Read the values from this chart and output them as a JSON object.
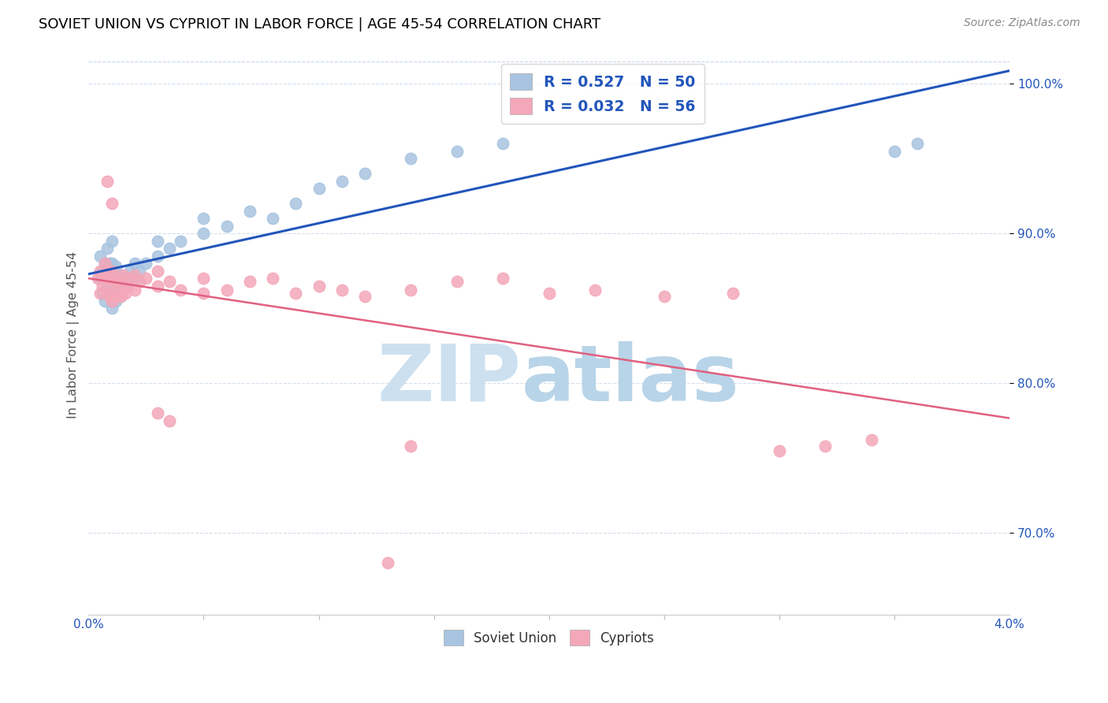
{
  "title": "SOVIET UNION VS CYPRIOT IN LABOR FORCE | AGE 45-54 CORRELATION CHART",
  "source": "Source: ZipAtlas.com",
  "ylabel": "In Labor Force | Age 45-54",
  "yticks": [
    0.7,
    0.8,
    0.9,
    1.0
  ],
  "ytick_labels": [
    "70.0%",
    "80.0%",
    "90.0%",
    "100.0%"
  ],
  "xmin": 0.0,
  "xmax": 0.04,
  "ymin": 0.645,
  "ymax": 1.02,
  "r_soviet": 0.527,
  "n_soviet": 50,
  "r_cypriot": 0.032,
  "n_cypriot": 56,
  "soviet_color": "#a8c4e0",
  "cypriot_color": "#f4a7b9",
  "trendline_soviet_color": "#2255bb",
  "trendline_cypriot_color": "#e06080",
  "legend_text_color": "#2255bb",
  "watermark_zip": "ZIP",
  "watermark_atlas": "atlas",
  "watermark_color": "#cce0f0",
  "background_color": "#ffffff",
  "soviet_x": [
    0.0005,
    0.0005,
    0.0006,
    0.0006,
    0.0007,
    0.0007,
    0.0008,
    0.0008,
    0.0008,
    0.0009,
    0.0009,
    0.0009,
    0.001,
    0.001,
    0.001,
    0.001,
    0.001,
    0.0012,
    0.0012,
    0.0012,
    0.0013,
    0.0013,
    0.0014,
    0.0014,
    0.0015,
    0.0016,
    0.0017,
    0.0018,
    0.002,
    0.002,
    0.0022,
    0.0025,
    0.003,
    0.003,
    0.0035,
    0.004,
    0.005,
    0.005,
    0.006,
    0.007,
    0.008,
    0.009,
    0.01,
    0.011,
    0.012,
    0.014,
    0.016,
    0.018,
    0.035,
    0.036
  ],
  "soviet_y": [
    0.87,
    0.885,
    0.86,
    0.875,
    0.855,
    0.88,
    0.865,
    0.875,
    0.89,
    0.86,
    0.87,
    0.88,
    0.85,
    0.86,
    0.87,
    0.88,
    0.895,
    0.855,
    0.865,
    0.878,
    0.862,
    0.872,
    0.858,
    0.868,
    0.87,
    0.865,
    0.87,
    0.875,
    0.87,
    0.88,
    0.875,
    0.88,
    0.885,
    0.895,
    0.89,
    0.895,
    0.9,
    0.91,
    0.905,
    0.915,
    0.91,
    0.92,
    0.93,
    0.935,
    0.94,
    0.95,
    0.955,
    0.96,
    0.955,
    0.96
  ],
  "cypriot_x": [
    0.0004,
    0.0005,
    0.0005,
    0.0006,
    0.0007,
    0.0007,
    0.0008,
    0.0008,
    0.0009,
    0.0009,
    0.001,
    0.001,
    0.001,
    0.0012,
    0.0012,
    0.0013,
    0.0013,
    0.0014,
    0.0015,
    0.0015,
    0.0016,
    0.0017,
    0.0018,
    0.002,
    0.002,
    0.0022,
    0.0025,
    0.003,
    0.003,
    0.0035,
    0.004,
    0.005,
    0.005,
    0.006,
    0.007,
    0.008,
    0.009,
    0.01,
    0.011,
    0.012,
    0.014,
    0.016,
    0.018,
    0.02,
    0.022,
    0.025,
    0.028,
    0.03,
    0.032,
    0.034,
    0.001,
    0.0008,
    0.003,
    0.0035,
    0.013,
    0.014
  ],
  "cypriot_y": [
    0.87,
    0.86,
    0.875,
    0.865,
    0.87,
    0.88,
    0.86,
    0.875,
    0.858,
    0.87,
    0.855,
    0.865,
    0.875,
    0.858,
    0.868,
    0.86,
    0.87,
    0.858,
    0.862,
    0.872,
    0.86,
    0.865,
    0.87,
    0.862,
    0.872,
    0.868,
    0.87,
    0.865,
    0.875,
    0.868,
    0.862,
    0.86,
    0.87,
    0.862,
    0.868,
    0.87,
    0.86,
    0.865,
    0.862,
    0.858,
    0.862,
    0.868,
    0.87,
    0.86,
    0.862,
    0.858,
    0.86,
    0.755,
    0.758,
    0.762,
    0.92,
    0.935,
    0.78,
    0.775,
    0.68,
    0.758
  ]
}
